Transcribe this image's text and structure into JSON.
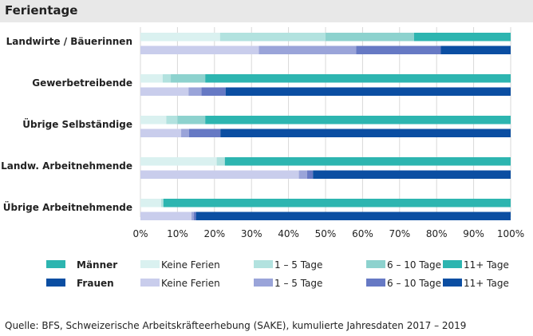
{
  "chart_data": {
    "type": "bar",
    "orientation": "horizontal",
    "stacked": true,
    "normalized": true,
    "title": "Ferientage",
    "categories": [
      "Landwirte / Bäuerinnen",
      "Gewerbetreibende",
      "Übrige Selbständige",
      "Landw. Arbeitnehmende",
      "Übrige Arbeitnehmende"
    ],
    "groups": [
      "Männer",
      "Frauen"
    ],
    "segments": [
      "Keine Ferien",
      "1 – 5 Tage",
      "6 – 10 Tage",
      "11+ Tage"
    ],
    "series": [
      {
        "group": "Männer",
        "values": [
          [
            21.5,
            28.5,
            23.9,
            26.1
          ],
          [
            6.0,
            2.2,
            9.3,
            82.5
          ],
          [
            7.0,
            3.0,
            7.5,
            82.5
          ],
          [
            20.6,
            2.2,
            0.0,
            77.2
          ],
          [
            5.6,
            0.6,
            0.0,
            93.8
          ]
        ]
      },
      {
        "group": "Frauen",
        "values": [
          [
            32.0,
            26.3,
            22.8,
            18.9
          ],
          [
            13.0,
            3.5,
            6.5,
            77.0
          ],
          [
            11.0,
            2.1,
            8.5,
            78.4
          ],
          [
            42.8,
            2.2,
            1.6,
            53.4
          ],
          [
            13.8,
            0.6,
            0.6,
            85.0
          ]
        ]
      }
    ],
    "colors": {
      "Männer": [
        "#daf1f0",
        "#b2e2df",
        "#8dd2ce",
        "#2db5b0"
      ],
      "Frauen": [
        "#c9cdec",
        "#9aa4d9",
        "#6679c4",
        "#0b4ea2"
      ]
    },
    "xlim": [
      0,
      100
    ],
    "xticks": [
      "0%",
      "10%",
      "20%",
      "30%",
      "40%",
      "50%",
      "60%",
      "70%",
      "80%",
      "90%",
      "100%"
    ],
    "legend_position": "bottom",
    "grid": true
  },
  "source": "Quelle: BFS, Schweizerische Arbeitskräfteerhebung (SAKE), kumulierte Jahresdaten 2017 – 2019"
}
